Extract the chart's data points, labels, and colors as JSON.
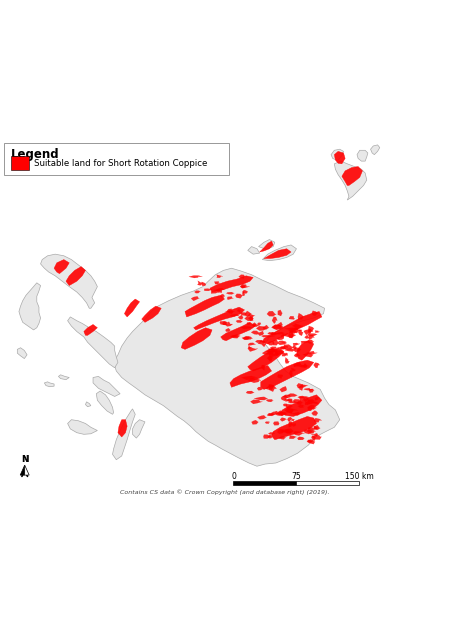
{
  "legend_title": "Legend",
  "legend_label": "Suitable land for Short Rotation Coppice",
  "legend_color": "#FF0000",
  "background_color": "#FFFFFF",
  "map_fill_color": "#E8E8E8",
  "map_edge_color": "#AAAAAA",
  "suitable_land_color": "#FF0000",
  "copyright_text": "Contains CS data © Crown Copyright (and database right) (2019).",
  "figsize": [
    4.49,
    6.36
  ],
  "dpi": 100,
  "xlim": [
    -7.8,
    0.5
  ],
  "ylim": [
    54.4,
    61.0
  ]
}
